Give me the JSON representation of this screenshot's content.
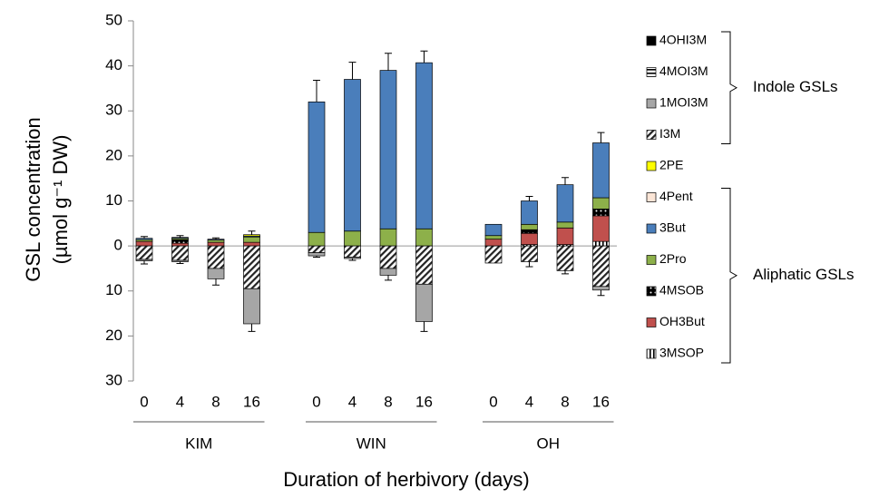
{
  "chart_data": {
    "type": "stacked_bar",
    "y_title_lines": [
      "GSL concentration",
      "(µmol g⁻¹ DW)"
    ],
    "x_title": "Duration of herbivory (days)",
    "categories": [
      "0",
      "4",
      "8",
      "16",
      "0",
      "4",
      "8",
      "16",
      "0",
      "4",
      "8",
      "16"
    ],
    "groups": [
      "KIM",
      "WIN",
      "OH"
    ],
    "ylim": [
      -30,
      50
    ],
    "yticks": [
      50,
      40,
      30,
      20,
      10,
      0,
      {
        "value": -10,
        "label": "10"
      },
      {
        "value": -20,
        "label": "20"
      },
      {
        "value": -30,
        "label": "30"
      }
    ],
    "legend_groups": [
      {
        "label": "Indole GSLs",
        "first": 0,
        "last": 3
      },
      {
        "label": "Aliphatic GSLs",
        "first": 5,
        "last": 10
      }
    ],
    "series": [
      {
        "name": "4OHI3M",
        "color": "#000000",
        "values": [
          0,
          0,
          0,
          0,
          0,
          0,
          0,
          0,
          0,
          0,
          0,
          0
        ]
      },
      {
        "name": "4MOI3M",
        "color": "#ffffff",
        "pattern": "hstripe",
        "values": [
          0,
          0,
          0,
          0,
          0,
          0,
          0,
          0,
          0,
          0,
          0,
          0
        ]
      },
      {
        "name": "1MOI3M",
        "color": "#a6a6a6",
        "values": [
          -0.3,
          -0.3,
          -2.3,
          -7.8,
          -0.7,
          -0.3,
          -1.5,
          -8.3,
          0,
          0,
          0,
          -0.8
        ]
      },
      {
        "name": "I3M",
        "color": "#ffffff",
        "pattern": "hatch",
        "values": [
          -3,
          -3.2,
          -5,
          -9.5,
          -1.5,
          -2.5,
          -5,
          -8.5,
          -3.8,
          -3.5,
          -5.5,
          -9
        ]
      },
      {
        "name": "2PE",
        "color": "#ffff00",
        "values": [
          0,
          0,
          0,
          0.3,
          0,
          0,
          0,
          0,
          0,
          0,
          0,
          0
        ]
      },
      {
        "name": "4Pent",
        "color": "#fbe5d6",
        "values": [
          0,
          0,
          0,
          0,
          0,
          0,
          0,
          0,
          0,
          0,
          0,
          0
        ]
      },
      {
        "name": "3But",
        "color": "#4a7ebb",
        "values": [
          0.3,
          0.2,
          0.2,
          0.2,
          29,
          33.7,
          35.2,
          36.9,
          2.5,
          5.2,
          8.3,
          12.2
        ]
      },
      {
        "name": "2Pro",
        "color": "#8db04a",
        "values": [
          0.4,
          0.3,
          0.5,
          1.2,
          3,
          3.3,
          3.8,
          3.8,
          0.8,
          1.2,
          1.3,
          2.5
        ]
      },
      {
        "name": "4MSOB",
        "color": "#000000",
        "pattern": "dots",
        "values": [
          0,
          0.8,
          0,
          0,
          0,
          0,
          0,
          0,
          0,
          0.8,
          0,
          1.5
        ]
      },
      {
        "name": "OH3But",
        "color": "#c0504d",
        "values": [
          1,
          0.6,
          0.8,
          0.8,
          0,
          0,
          0,
          0,
          1.5,
          2.5,
          3.7,
          5.7
        ]
      },
      {
        "name": "3MSOP",
        "color": "#ffffff",
        "pattern": "vstripe",
        "values": [
          0,
          0,
          0,
          0,
          0,
          0,
          0,
          0,
          0,
          0.3,
          0.3,
          1
        ]
      }
    ],
    "error_upper": [
      0.4,
      0.4,
      0.3,
      0.8,
      4.8,
      3.8,
      3.8,
      2.6,
      null,
      1,
      1.6,
      2.3
    ],
    "error_lower": [
      0.7,
      0.4,
      1.4,
      1.7,
      0.3,
      0.4,
      1.1,
      2.2,
      null,
      1.1,
      0.7,
      1.2
    ]
  }
}
